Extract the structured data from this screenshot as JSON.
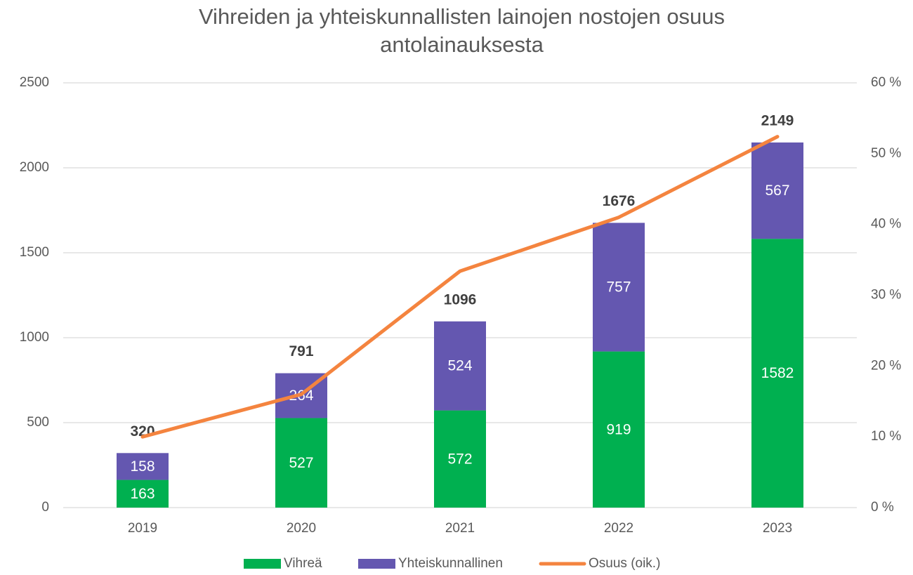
{
  "chart_data": {
    "type": "bar",
    "title": "Vihreiden ja yhteiskunnallisten lainojen nostojen osuus antolainauksesta",
    "categories": [
      "2019",
      "2020",
      "2021",
      "2022",
      "2023"
    ],
    "series": [
      {
        "name": "Vihreä",
        "color": "#00b050",
        "values": [
          163,
          527,
          572,
          919,
          1582
        ]
      },
      {
        "name": "Yhteiskunnallinen",
        "color": "#6457b0",
        "values": [
          158,
          264,
          524,
          757,
          567
        ]
      },
      {
        "name": "Osuus (oik.)",
        "color": "#f4843f",
        "axis": "y2",
        "type": "line",
        "values": [
          10,
          16,
          33.4,
          41,
          52.4
        ]
      }
    ],
    "totals": [
      320,
      791,
      1096,
      1676,
      2149
    ],
    "stacked": true,
    "ylim": [
      0,
      2500
    ],
    "yticks": [
      0,
      500,
      1000,
      1500,
      2000,
      2500
    ],
    "y2lim": [
      0,
      60
    ],
    "y2ticks": [
      {
        "value": 0,
        "label": "0 %"
      },
      {
        "value": 10,
        "label": "10 %"
      },
      {
        "value": 20,
        "label": "20 %"
      },
      {
        "value": 30,
        "label": "30 %"
      },
      {
        "value": 40,
        "label": "40 %"
      },
      {
        "value": 50,
        "label": "50 %"
      },
      {
        "value": 60,
        "label": "60 %"
      }
    ],
    "grid": true,
    "legend": "bottom"
  }
}
